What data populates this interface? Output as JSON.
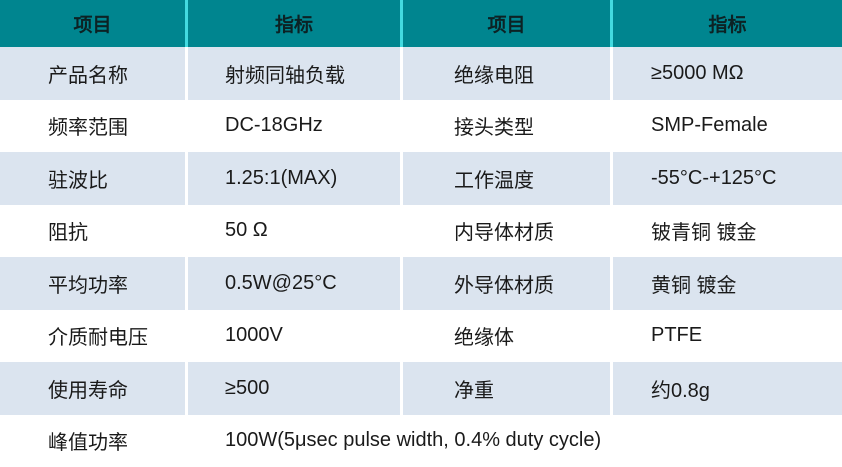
{
  "colors": {
    "teal": "#00858F",
    "header-divider": "#43DAE0",
    "row-alt": "#DBE4EF",
    "row-white": "#FFFFFF",
    "cell-divider": "#FFFFFF",
    "header-text": "#0C2224",
    "body-text": "#1A1A1A"
  },
  "table": {
    "header": [
      "项目",
      "指标",
      "项目",
      "指标"
    ],
    "rows": [
      [
        "产品名称",
        "射频同轴负载",
        "绝缘电阻",
        "≥5000 MΩ"
      ],
      [
        "频率范围",
        "DC-18GHz",
        "接头类型",
        "SMP-Female"
      ],
      [
        "驻波比",
        "1.25:1(MAX)",
        "工作温度",
        "-55°C-+125°C"
      ],
      [
        "阻抗",
        "50 Ω",
        "内导体材质",
        "铍青铜 镀金"
      ],
      [
        "平均功率",
        "0.5W@25°C",
        "外导体材质",
        "黄铜 镀金"
      ],
      [
        "介质耐电压",
        "1000V",
        "绝缘体",
        "PTFE"
      ],
      [
        "使用寿命",
        "≥500",
        "净重",
        "约0.8g"
      ]
    ],
    "footer_row": {
      "item": "峰值功率",
      "value": "100W(5μsec pulse width, 0.4% duty cycle)"
    }
  }
}
